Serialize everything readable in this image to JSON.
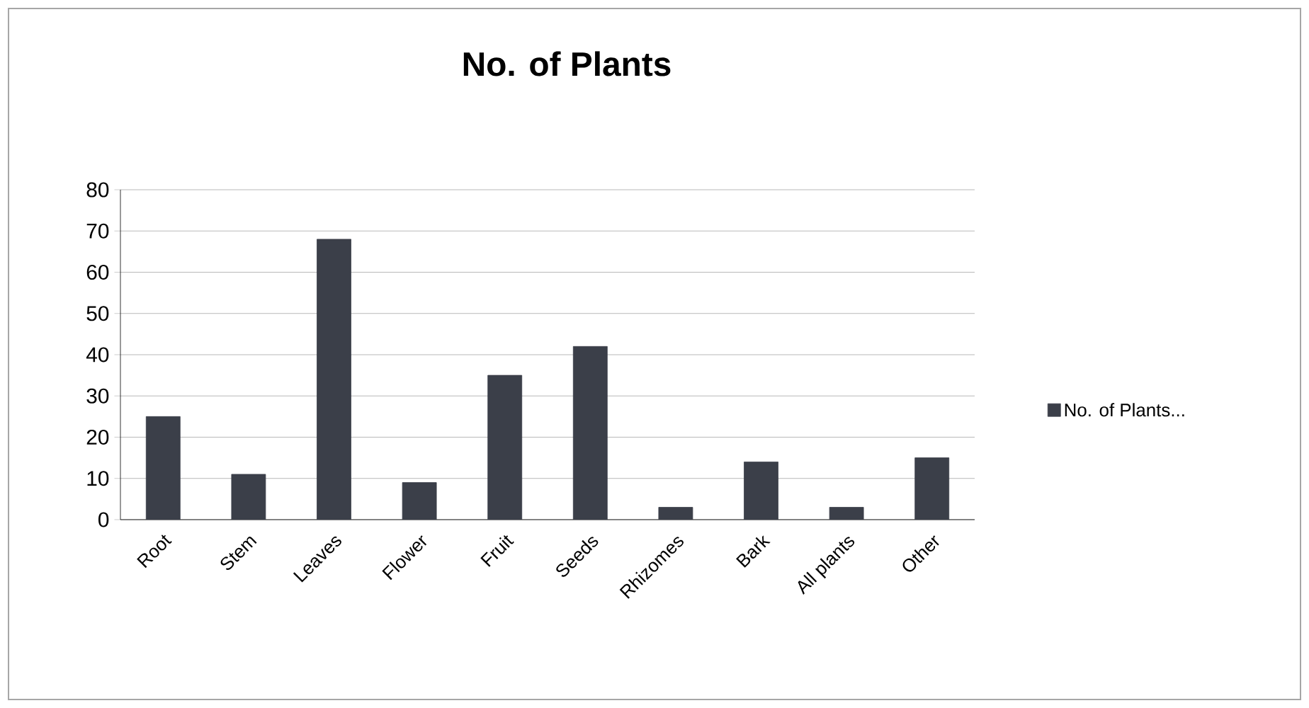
{
  "chart_data": {
    "type": "bar",
    "title": "No. of Plants",
    "categories": [
      "Root",
      "Stem",
      "Leaves",
      "Flower",
      "Fruit",
      "Seeds",
      "Rhizomes",
      "Bark",
      "All plants",
      "Other"
    ],
    "series": [
      {
        "name": "No. of Plants...",
        "color": "#3b3f49",
        "values": [
          25,
          11,
          68,
          9,
          35,
          42,
          3,
          14,
          3,
          15
        ]
      }
    ],
    "ylim": [
      0,
      80
    ],
    "yticks": [
      0,
      10,
      20,
      30,
      40,
      50,
      60,
      70,
      80
    ],
    "grid": "y",
    "legend": "right"
  }
}
